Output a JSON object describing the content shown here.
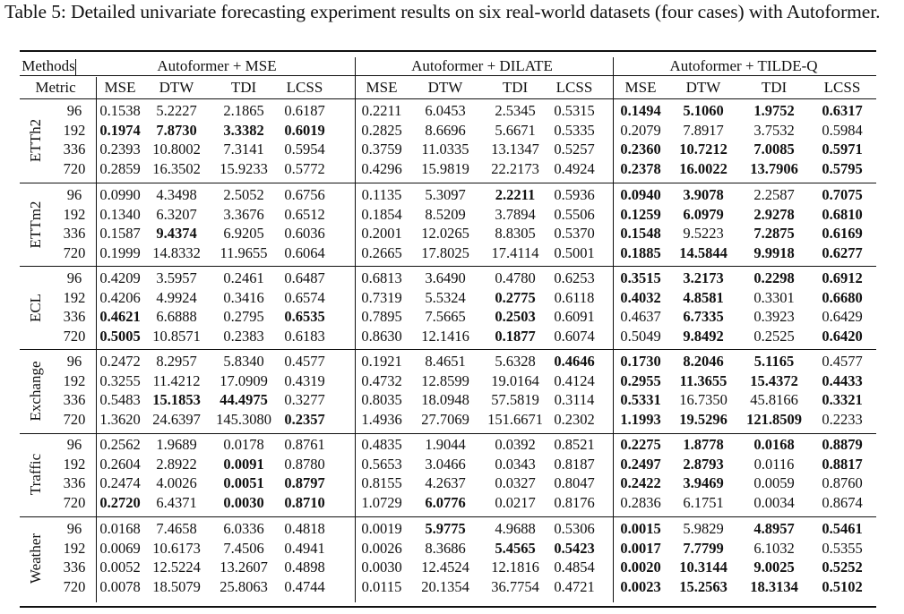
{
  "caption": "Table 5: Detailed univariate forecasting experiment results on six real-world datasets (four cases) with Autoformer.",
  "header": {
    "methods_label": "Methods",
    "metric_label": "Metric",
    "groups": [
      "Autoformer + MSE",
      "Autoformer + DILATE",
      "Autoformer + TILDE-Q"
    ],
    "metrics": [
      "MSE",
      "DTW",
      "TDI",
      "LCSS",
      "MSE",
      "DTW",
      "TDI",
      "LCSS",
      "MSE",
      "DTW",
      "TDI",
      "LCSS"
    ]
  },
  "datasets": [
    {
      "name": "ETTh2",
      "rows": [
        {
          "horizon": "96",
          "values": [
            "0.1538",
            "5.2227",
            "2.1865",
            "0.6187",
            "0.2211",
            "6.0453",
            "2.5345",
            "0.5315",
            "0.1494",
            "5.1060",
            "1.9752",
            "0.6317"
          ],
          "bold": [
            8,
            9,
            10,
            11
          ]
        },
        {
          "horizon": "192",
          "values": [
            "0.1974",
            "7.8730",
            "3.3382",
            "0.6019",
            "0.2825",
            "8.6696",
            "5.6671",
            "0.5335",
            "0.2079",
            "7.8917",
            "3.7532",
            "0.5984"
          ],
          "bold": [
            0,
            1,
            2,
            3
          ]
        },
        {
          "horizon": "336",
          "values": [
            "0.2393",
            "10.8002",
            "7.3141",
            "0.5954",
            "0.3759",
            "11.0335",
            "13.1347",
            "0.5257",
            "0.2360",
            "10.7212",
            "7.0085",
            "0.5971"
          ],
          "bold": [
            8,
            9,
            10,
            11
          ]
        },
        {
          "horizon": "720",
          "values": [
            "0.2859",
            "16.3502",
            "15.9233",
            "0.5772",
            "0.4296",
            "15.9819",
            "22.2173",
            "0.4924",
            "0.2378",
            "16.0022",
            "13.7906",
            "0.5795"
          ],
          "bold": [
            8,
            9,
            10,
            11
          ]
        }
      ]
    },
    {
      "name": "ETTm2",
      "rows": [
        {
          "horizon": "96",
          "values": [
            "0.0990",
            "4.3498",
            "2.5052",
            "0.6756",
            "0.1135",
            "5.3097",
            "2.2211",
            "0.5936",
            "0.0940",
            "3.9078",
            "2.2587",
            "0.7075"
          ],
          "bold": [
            6,
            8,
            9,
            11
          ]
        },
        {
          "horizon": "192",
          "values": [
            "0.1340",
            "6.3207",
            "3.3676",
            "0.6512",
            "0.1854",
            "8.5209",
            "3.7894",
            "0.5506",
            "0.1259",
            "6.0979",
            "2.9278",
            "0.6810"
          ],
          "bold": [
            8,
            9,
            10,
            11
          ]
        },
        {
          "horizon": "336",
          "values": [
            "0.1587",
            "9.4374",
            "6.9205",
            "0.6036",
            "0.2001",
            "12.0265",
            "8.8305",
            "0.5370",
            "0.1548",
            "9.5223",
            "7.2875",
            "0.6169"
          ],
          "bold": [
            1,
            8,
            10,
            11
          ]
        },
        {
          "horizon": "720",
          "values": [
            "0.1999",
            "14.8332",
            "11.9655",
            "0.6064",
            "0.2665",
            "17.8025",
            "17.4114",
            "0.5001",
            "0.1885",
            "14.5844",
            "9.9918",
            "0.6277"
          ],
          "bold": [
            8,
            9,
            10,
            11
          ]
        }
      ]
    },
    {
      "name": "ECL",
      "rows": [
        {
          "horizon": "96",
          "values": [
            "0.4209",
            "3.5957",
            "0.2461",
            "0.6487",
            "0.6813",
            "3.6490",
            "0.4780",
            "0.6253",
            "0.3515",
            "3.2173",
            "0.2298",
            "0.6912"
          ],
          "bold": [
            8,
            9,
            10,
            11
          ]
        },
        {
          "horizon": "192",
          "values": [
            "0.4206",
            "4.9924",
            "0.3416",
            "0.6574",
            "0.7319",
            "5.5324",
            "0.2775",
            "0.6118",
            "0.4032",
            "4.8581",
            "0.3301",
            "0.6680"
          ],
          "bold": [
            6,
            8,
            9,
            11
          ]
        },
        {
          "horizon": "336",
          "values": [
            "0.4621",
            "6.6888",
            "0.2795",
            "0.6535",
            "0.7895",
            "7.5665",
            "0.2503",
            "0.6091",
            "0.4637",
            "6.7335",
            "0.3923",
            "0.6429"
          ],
          "bold": [
            0,
            3,
            6,
            9
          ]
        },
        {
          "horizon": "720",
          "values": [
            "0.5005",
            "10.8571",
            "0.2383",
            "0.6183",
            "0.8630",
            "12.1416",
            "0.1877",
            "0.6074",
            "0.5049",
            "9.8492",
            "0.2525",
            "0.6420"
          ],
          "bold": [
            0,
            6,
            9,
            11
          ]
        }
      ]
    },
    {
      "name": "Exchange",
      "rows": [
        {
          "horizon": "96",
          "values": [
            "0.2472",
            "8.2957",
            "5.8340",
            "0.4577",
            "0.1921",
            "8.4651",
            "5.6328",
            "0.4646",
            "0.1730",
            "8.2046",
            "5.1165",
            "0.4577"
          ],
          "bold": [
            7,
            8,
            9,
            10
          ]
        },
        {
          "horizon": "192",
          "values": [
            "0.3255",
            "11.4212",
            "17.0909",
            "0.4319",
            "0.4732",
            "12.8599",
            "19.0164",
            "0.4124",
            "0.2955",
            "11.3655",
            "15.4372",
            "0.4433"
          ],
          "bold": [
            8,
            9,
            10,
            11
          ]
        },
        {
          "horizon": "336",
          "values": [
            "0.5483",
            "15.1853",
            "44.4975",
            "0.3277",
            "0.8035",
            "18.0948",
            "57.5819",
            "0.3114",
            "0.5331",
            "16.7350",
            "45.8166",
            "0.3321"
          ],
          "bold": [
            1,
            2,
            8,
            11
          ]
        },
        {
          "horizon": "720",
          "values": [
            "1.3620",
            "24.6397",
            "145.3080",
            "0.2357",
            "1.4936",
            "27.7069",
            "151.6671",
            "0.2302",
            "1.1993",
            "19.5296",
            "121.8509",
            "0.2233"
          ],
          "bold": [
            3,
            8,
            9,
            10
          ]
        }
      ]
    },
    {
      "name": "Traffic",
      "rows": [
        {
          "horizon": "96",
          "values": [
            "0.2562",
            "1.9689",
            "0.0178",
            "0.8761",
            "0.4835",
            "1.9044",
            "0.0392",
            "0.8521",
            "0.2275",
            "1.8778",
            "0.0168",
            "0.8879"
          ],
          "bold": [
            8,
            9,
            10,
            11
          ]
        },
        {
          "horizon": "192",
          "values": [
            "0.2604",
            "2.8922",
            "0.0091",
            "0.8780",
            "0.5653",
            "3.0466",
            "0.0343",
            "0.8187",
            "0.2497",
            "2.8793",
            "0.0116",
            "0.8817"
          ],
          "bold": [
            2,
            8,
            9,
            11
          ]
        },
        {
          "horizon": "336",
          "values": [
            "0.2474",
            "4.0026",
            "0.0051",
            "0.8797",
            "0.8155",
            "4.2637",
            "0.0327",
            "0.8047",
            "0.2422",
            "3.9469",
            "0.0059",
            "0.8760"
          ],
          "bold": [
            2,
            3,
            8,
            9
          ]
        },
        {
          "horizon": "720",
          "values": [
            "0.2720",
            "6.4371",
            "0.0030",
            "0.8710",
            "1.0729",
            "6.0776",
            "0.0217",
            "0.8176",
            "0.2836",
            "6.1751",
            "0.0034",
            "0.8674"
          ],
          "bold": [
            0,
            2,
            3,
            5
          ]
        }
      ]
    },
    {
      "name": "Weather",
      "rows": [
        {
          "horizon": "96",
          "values": [
            "0.0168",
            "7.4658",
            "6.0336",
            "0.4818",
            "0.0019",
            "5.9775",
            "4.9688",
            "0.5306",
            "0.0015",
            "5.9829",
            "4.8957",
            "0.5461"
          ],
          "bold": [
            5,
            8,
            10,
            11
          ]
        },
        {
          "horizon": "192",
          "values": [
            "0.0069",
            "10.6173",
            "7.4506",
            "0.4941",
            "0.0026",
            "8.3686",
            "5.4565",
            "0.5423",
            "0.0017",
            "7.7799",
            "6.1032",
            "0.5355"
          ],
          "bold": [
            6,
            7,
            8,
            9
          ]
        },
        {
          "horizon": "336",
          "values": [
            "0.0052",
            "12.5224",
            "13.2607",
            "0.4898",
            "0.0030",
            "12.4524",
            "12.1816",
            "0.4854",
            "0.0020",
            "10.3144",
            "9.0025",
            "0.5252"
          ],
          "bold": [
            8,
            9,
            10,
            11
          ]
        },
        {
          "horizon": "720",
          "values": [
            "0.0078",
            "18.5079",
            "25.8063",
            "0.4744",
            "0.0115",
            "20.1354",
            "36.7754",
            "0.4721",
            "0.0023",
            "15.2563",
            "18.3134",
            "0.5102"
          ],
          "bold": [
            8,
            9,
            10,
            11
          ]
        }
      ]
    }
  ]
}
